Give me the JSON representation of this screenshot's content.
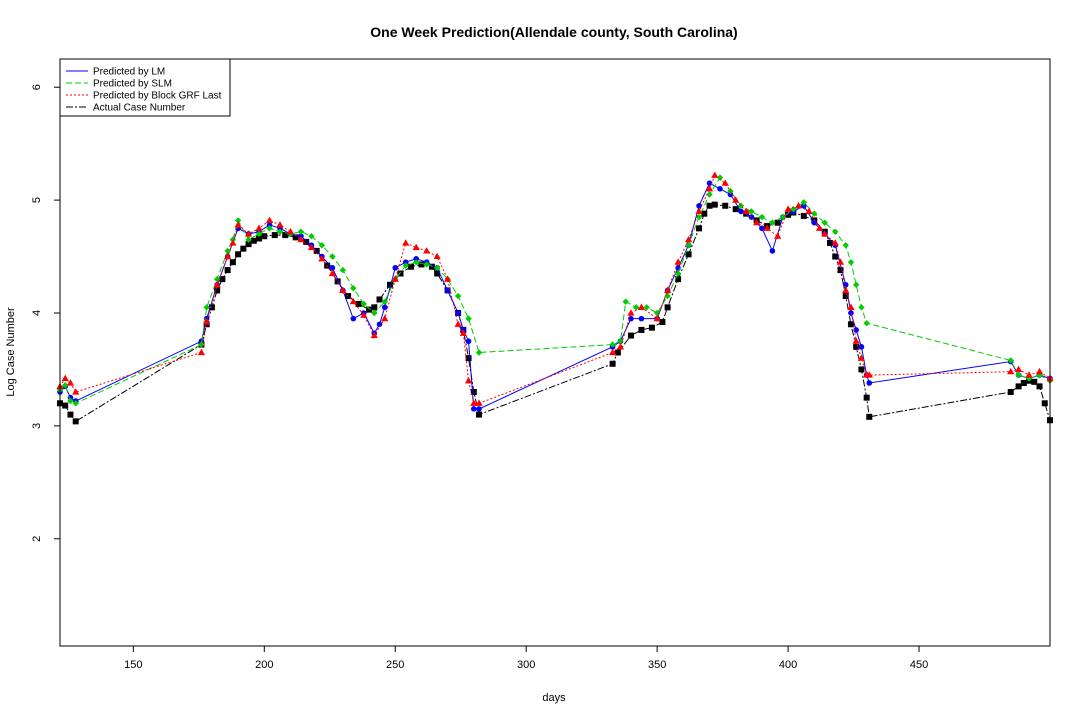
{
  "chart_data": {
    "type": "line",
    "title": "One Week Prediction(Allendale county, South Carolina)",
    "xlabel": "days",
    "ylabel": "Log Case Number",
    "xlim": [
      122,
      500
    ],
    "ylim": [
      1.05,
      6.25
    ],
    "xticks": [
      150,
      200,
      250,
      300,
      350,
      400,
      450
    ],
    "yticks": [
      2,
      3,
      4,
      5,
      6
    ],
    "grid": false,
    "legend_position": "top-left",
    "legend": [
      {
        "label": "Predicted by LM",
        "color": "#0000ff",
        "dash": "",
        "marker": "circle"
      },
      {
        "label": "Predicted by SLM",
        "color": "#00cc00",
        "dash": "6,3",
        "marker": "diamond"
      },
      {
        "label": "Predicted by Block GRF Last",
        "color": "#ff0000",
        "dash": "2,2",
        "marker": "triangle"
      },
      {
        "label": "Actual Case Number",
        "color": "#000000",
        "dash": "7,2,2,2",
        "marker": "square"
      }
    ],
    "series": [
      {
        "name": "Actual Case Number",
        "color": "#000000",
        "points": [
          [
            122,
            3.2
          ],
          [
            124,
            3.18
          ],
          [
            126,
            3.1
          ],
          [
            128,
            3.04
          ],
          [
            176,
            3.72
          ],
          [
            178,
            3.9
          ],
          [
            180,
            4.05
          ],
          [
            182,
            4.2
          ],
          [
            184,
            4.3
          ],
          [
            186,
            4.38
          ],
          [
            188,
            4.45
          ],
          [
            190,
            4.52
          ],
          [
            192,
            4.57
          ],
          [
            194,
            4.61
          ],
          [
            196,
            4.64
          ],
          [
            198,
            4.66
          ],
          [
            200,
            4.68
          ],
          [
            204,
            4.69
          ],
          [
            208,
            4.69
          ],
          [
            212,
            4.67
          ],
          [
            216,
            4.63
          ],
          [
            220,
            4.55
          ],
          [
            224,
            4.42
          ],
          [
            228,
            4.28
          ],
          [
            232,
            4.15
          ],
          [
            236,
            4.08
          ],
          [
            240,
            4.03
          ],
          [
            242,
            4.05
          ],
          [
            244,
            4.12
          ],
          [
            248,
            4.25
          ],
          [
            252,
            4.35
          ],
          [
            256,
            4.41
          ],
          [
            260,
            4.43
          ],
          [
            264,
            4.41
          ],
          [
            266,
            4.35
          ],
          [
            270,
            4.2
          ],
          [
            274,
            4.0
          ],
          [
            276,
            3.85
          ],
          [
            278,
            3.6
          ],
          [
            280,
            3.3
          ],
          [
            282,
            3.1
          ],
          [
            333,
            3.55
          ],
          [
            335,
            3.65
          ],
          [
            340,
            3.8
          ],
          [
            344,
            3.85
          ],
          [
            348,
            3.87
          ],
          [
            352,
            3.92
          ],
          [
            354,
            4.05
          ],
          [
            358,
            4.3
          ],
          [
            362,
            4.52
          ],
          [
            366,
            4.75
          ],
          [
            368,
            4.88
          ],
          [
            370,
            4.95
          ],
          [
            372,
            4.96
          ],
          [
            376,
            4.95
          ],
          [
            380,
            4.92
          ],
          [
            384,
            4.88
          ],
          [
            388,
            4.82
          ],
          [
            392,
            4.77
          ],
          [
            396,
            4.8
          ],
          [
            400,
            4.87
          ],
          [
            402,
            4.89
          ],
          [
            406,
            4.86
          ],
          [
            410,
            4.82
          ],
          [
            414,
            4.72
          ],
          [
            416,
            4.62
          ],
          [
            418,
            4.5
          ],
          [
            420,
            4.38
          ],
          [
            422,
            4.15
          ],
          [
            424,
            3.9
          ],
          [
            426,
            3.7
          ],
          [
            428,
            3.5
          ],
          [
            430,
            3.25
          ],
          [
            431,
            3.08
          ],
          [
            485,
            3.3
          ],
          [
            488,
            3.35
          ],
          [
            490,
            3.38
          ],
          [
            492,
            3.4
          ],
          [
            494,
            3.39
          ],
          [
            496,
            3.35
          ],
          [
            498,
            3.2
          ],
          [
            500,
            3.05
          ]
        ]
      },
      {
        "name": "Predicted by LM",
        "color": "#0000ff",
        "points": [
          [
            122,
            3.3
          ],
          [
            124,
            3.35
          ],
          [
            126,
            3.25
          ],
          [
            128,
            3.22
          ],
          [
            176,
            3.75
          ],
          [
            178,
            3.95
          ],
          [
            182,
            4.25
          ],
          [
            186,
            4.5
          ],
          [
            190,
            4.75
          ],
          [
            194,
            4.7
          ],
          [
            198,
            4.72
          ],
          [
            202,
            4.78
          ],
          [
            206,
            4.75
          ],
          [
            210,
            4.7
          ],
          [
            214,
            4.68
          ],
          [
            218,
            4.6
          ],
          [
            222,
            4.5
          ],
          [
            226,
            4.4
          ],
          [
            230,
            4.2
          ],
          [
            234,
            3.95
          ],
          [
            238,
            4.0
          ],
          [
            242,
            3.82
          ],
          [
            244,
            3.9
          ],
          [
            246,
            4.05
          ],
          [
            250,
            4.4
          ],
          [
            254,
            4.45
          ],
          [
            258,
            4.48
          ],
          [
            262,
            4.45
          ],
          [
            266,
            4.4
          ],
          [
            270,
            4.2
          ],
          [
            274,
            4.0
          ],
          [
            276,
            3.85
          ],
          [
            278,
            3.75
          ],
          [
            280,
            3.15
          ],
          [
            282,
            3.15
          ],
          [
            333,
            3.7
          ],
          [
            336,
            3.75
          ],
          [
            340,
            3.95
          ],
          [
            344,
            3.95
          ],
          [
            350,
            3.95
          ],
          [
            354,
            4.2
          ],
          [
            358,
            4.4
          ],
          [
            362,
            4.6
          ],
          [
            366,
            4.95
          ],
          [
            370,
            5.15
          ],
          [
            374,
            5.1
          ],
          [
            378,
            5.05
          ],
          [
            382,
            4.9
          ],
          [
            386,
            4.85
          ],
          [
            390,
            4.75
          ],
          [
            394,
            4.55
          ],
          [
            398,
            4.85
          ],
          [
            402,
            4.9
          ],
          [
            406,
            4.95
          ],
          [
            410,
            4.8
          ],
          [
            414,
            4.7
          ],
          [
            418,
            4.6
          ],
          [
            422,
            4.25
          ],
          [
            424,
            4.0
          ],
          [
            426,
            3.85
          ],
          [
            428,
            3.7
          ],
          [
            430,
            3.45
          ],
          [
            431,
            3.38
          ],
          [
            485,
            3.57
          ],
          [
            488,
            3.45
          ],
          [
            492,
            3.42
          ],
          [
            496,
            3.45
          ],
          [
            500,
            3.42
          ]
        ]
      },
      {
        "name": "Predicted by SLM",
        "color": "#00cc00",
        "points": [
          [
            122,
            3.32
          ],
          [
            124,
            3.36
          ],
          [
            126,
            3.22
          ],
          [
            128,
            3.2
          ],
          [
            176,
            3.72
          ],
          [
            178,
            4.05
          ],
          [
            182,
            4.3
          ],
          [
            186,
            4.55
          ],
          [
            188,
            4.65
          ],
          [
            190,
            4.82
          ],
          [
            194,
            4.65
          ],
          [
            198,
            4.7
          ],
          [
            202,
            4.75
          ],
          [
            206,
            4.72
          ],
          [
            210,
            4.7
          ],
          [
            214,
            4.72
          ],
          [
            218,
            4.68
          ],
          [
            222,
            4.6
          ],
          [
            226,
            4.5
          ],
          [
            230,
            4.38
          ],
          [
            234,
            4.22
          ],
          [
            238,
            4.08
          ],
          [
            242,
            4.0
          ],
          [
            246,
            4.1
          ],
          [
            250,
            4.3
          ],
          [
            254,
            4.42
          ],
          [
            258,
            4.45
          ],
          [
            262,
            4.43
          ],
          [
            266,
            4.4
          ],
          [
            270,
            4.3
          ],
          [
            274,
            4.15
          ],
          [
            278,
            3.95
          ],
          [
            282,
            3.65
          ],
          [
            333,
            3.72
          ],
          [
            336,
            3.75
          ],
          [
            338,
            4.1
          ],
          [
            342,
            4.05
          ],
          [
            346,
            4.05
          ],
          [
            350,
            4.0
          ],
          [
            354,
            4.15
          ],
          [
            358,
            4.35
          ],
          [
            362,
            4.6
          ],
          [
            366,
            4.85
          ],
          [
            370,
            5.05
          ],
          [
            374,
            5.2
          ],
          [
            378,
            5.08
          ],
          [
            382,
            4.95
          ],
          [
            386,
            4.9
          ],
          [
            390,
            4.85
          ],
          [
            394,
            4.8
          ],
          [
            398,
            4.85
          ],
          [
            402,
            4.92
          ],
          [
            406,
            4.98
          ],
          [
            410,
            4.88
          ],
          [
            414,
            4.8
          ],
          [
            418,
            4.72
          ],
          [
            422,
            4.6
          ],
          [
            424,
            4.45
          ],
          [
            426,
            4.25
          ],
          [
            428,
            4.05
          ],
          [
            430,
            3.91
          ],
          [
            485,
            3.58
          ],
          [
            488,
            3.45
          ],
          [
            492,
            3.42
          ],
          [
            496,
            3.45
          ],
          [
            500,
            3.4
          ]
        ]
      },
      {
        "name": "Predicted by Block GRF Last",
        "color": "#ff0000",
        "points": [
          [
            122,
            3.35
          ],
          [
            124,
            3.42
          ],
          [
            126,
            3.38
          ],
          [
            128,
            3.3
          ],
          [
            176,
            3.65
          ],
          [
            178,
            3.92
          ],
          [
            182,
            4.25
          ],
          [
            186,
            4.5
          ],
          [
            188,
            4.62
          ],
          [
            190,
            4.78
          ],
          [
            194,
            4.7
          ],
          [
            198,
            4.75
          ],
          [
            202,
            4.82
          ],
          [
            206,
            4.78
          ],
          [
            210,
            4.72
          ],
          [
            214,
            4.65
          ],
          [
            218,
            4.58
          ],
          [
            222,
            4.48
          ],
          [
            226,
            4.35
          ],
          [
            230,
            4.2
          ],
          [
            234,
            4.1
          ],
          [
            238,
            3.98
          ],
          [
            242,
            3.8
          ],
          [
            246,
            3.95
          ],
          [
            250,
            4.3
          ],
          [
            254,
            4.62
          ],
          [
            258,
            4.58
          ],
          [
            262,
            4.55
          ],
          [
            266,
            4.5
          ],
          [
            270,
            4.3
          ],
          [
            274,
            3.9
          ],
          [
            276,
            3.82
          ],
          [
            278,
            3.4
          ],
          [
            280,
            3.2
          ],
          [
            282,
            3.2
          ],
          [
            333,
            3.65
          ],
          [
            336,
            3.7
          ],
          [
            340,
            4.0
          ],
          [
            344,
            4.05
          ],
          [
            350,
            3.95
          ],
          [
            354,
            4.2
          ],
          [
            358,
            4.45
          ],
          [
            362,
            4.65
          ],
          [
            366,
            4.9
          ],
          [
            370,
            5.1
          ],
          [
            372,
            5.22
          ],
          [
            376,
            5.15
          ],
          [
            380,
            5.0
          ],
          [
            384,
            4.9
          ],
          [
            388,
            4.8
          ],
          [
            392,
            4.75
          ],
          [
            396,
            4.68
          ],
          [
            400,
            4.92
          ],
          [
            404,
            4.95
          ],
          [
            408,
            4.9
          ],
          [
            412,
            4.75
          ],
          [
            414,
            4.7
          ],
          [
            418,
            4.62
          ],
          [
            420,
            4.45
          ],
          [
            422,
            4.2
          ],
          [
            424,
            4.05
          ],
          [
            426,
            3.75
          ],
          [
            428,
            3.6
          ],
          [
            430,
            3.45
          ],
          [
            431,
            3.45
          ],
          [
            485,
            3.48
          ],
          [
            488,
            3.5
          ],
          [
            492,
            3.45
          ],
          [
            496,
            3.48
          ],
          [
            500,
            3.42
          ]
        ]
      }
    ]
  }
}
